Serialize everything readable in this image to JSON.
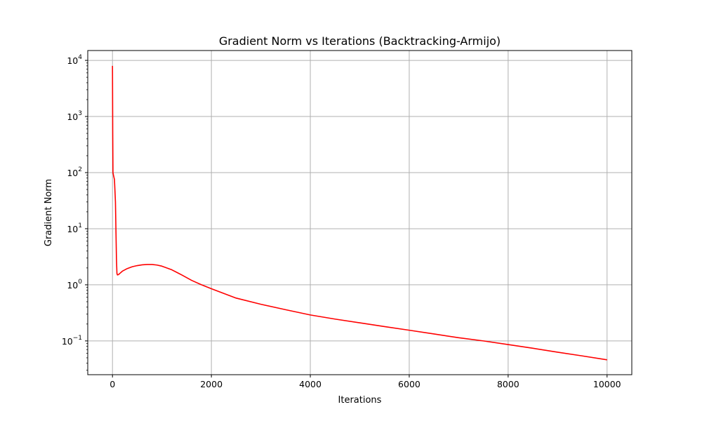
{
  "chart_data": {
    "type": "line",
    "title": "Gradient Norm vs Iterations (Backtracking-Armijo)",
    "xlabel": "Iterations",
    "ylabel": "Gradient Norm",
    "xlim": [
      -500,
      10500
    ],
    "ylim": [
      0.025,
      15000
    ],
    "yscale": "log",
    "grid": true,
    "x_ticks": [
      0,
      2000,
      4000,
      6000,
      8000,
      10000
    ],
    "x_tick_labels": [
      "0",
      "2000",
      "4000",
      "6000",
      "8000",
      "10000"
    ],
    "y_ticks": [
      0.1,
      1,
      10,
      100,
      1000,
      10000
    ],
    "y_tick_labels": [
      {
        "base": "10",
        "exp": "−1"
      },
      {
        "base": "10",
        "exp": "0"
      },
      {
        "base": "10",
        "exp": "1"
      },
      {
        "base": "10",
        "exp": "2"
      },
      {
        "base": "10",
        "exp": "3"
      },
      {
        "base": "10",
        "exp": "4"
      }
    ],
    "series": [
      {
        "color": "#ff0000",
        "x": [
          0,
          5,
          10,
          20,
          40,
          60,
          80,
          90,
          100,
          120,
          150,
          200,
          300,
          400,
          500,
          600,
          700,
          800,
          900,
          1000,
          1200,
          1400,
          1600,
          1800,
          2000,
          2500,
          3000,
          3500,
          4000,
          4500,
          5000,
          5500,
          6000,
          6500,
          7000,
          7500,
          8000,
          8500,
          9000,
          9500,
          10000
        ],
        "y": [
          8000,
          500,
          100,
          90,
          75,
          30,
          3,
          1.6,
          1.5,
          1.52,
          1.6,
          1.75,
          1.95,
          2.1,
          2.2,
          2.27,
          2.3,
          2.3,
          2.25,
          2.15,
          1.85,
          1.5,
          1.2,
          1.0,
          0.85,
          0.58,
          0.45,
          0.36,
          0.29,
          0.245,
          0.21,
          0.18,
          0.155,
          0.133,
          0.114,
          0.1,
          0.086,
          0.074,
          0.063,
          0.054,
          0.046
        ]
      }
    ]
  }
}
